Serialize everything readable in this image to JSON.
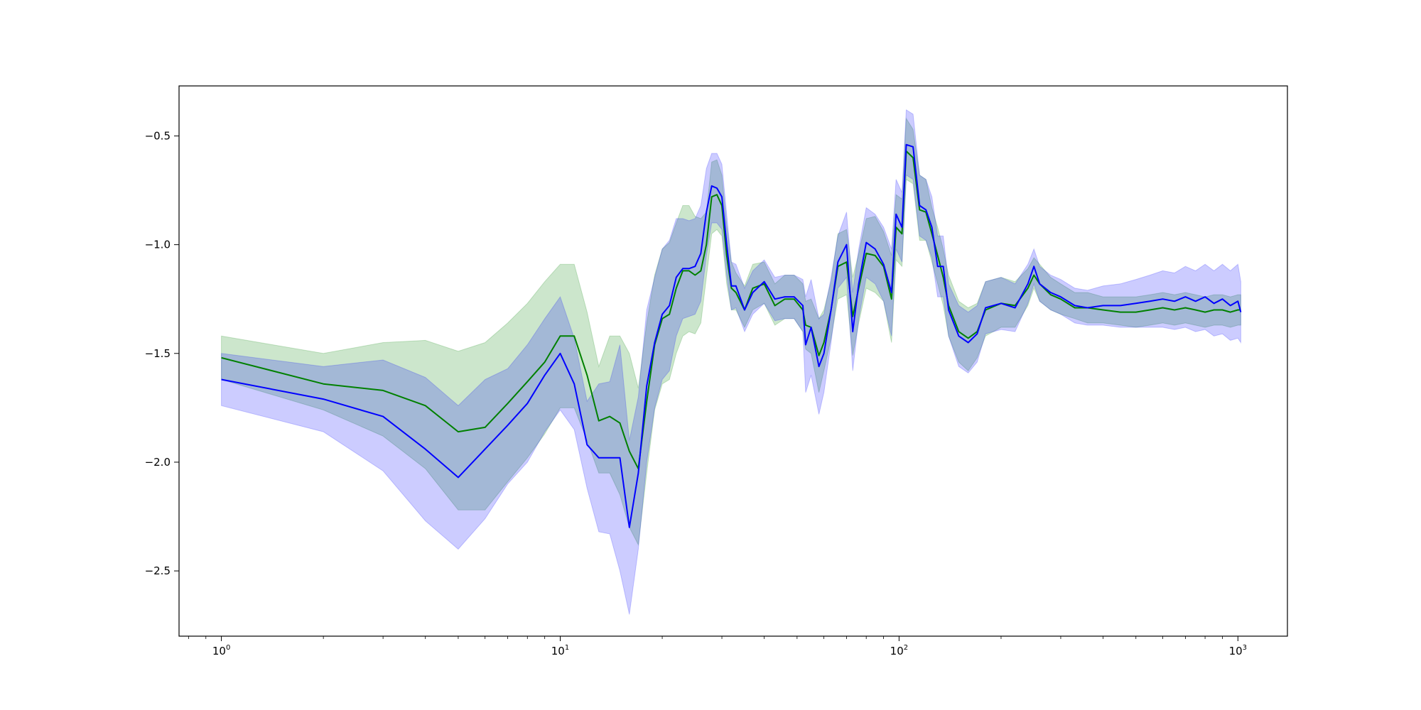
{
  "chart_data": {
    "type": "line",
    "title": "",
    "xlabel": "",
    "ylabel": "",
    "x_scale": "log",
    "xlim": [
      0.75,
      1400
    ],
    "ylim": [
      -2.8,
      -0.27
    ],
    "grid": false,
    "x_ticks": [
      {
        "value": 1,
        "base": "10",
        "exp": "0"
      },
      {
        "value": 10,
        "base": "10",
        "exp": "1"
      },
      {
        "value": 100,
        "base": "10",
        "exp": "2"
      },
      {
        "value": 1000,
        "base": "10",
        "exp": "3"
      }
    ],
    "y_ticks": [
      {
        "value": -0.5,
        "label": "−0.5"
      },
      {
        "value": -1.0,
        "label": "−1.0"
      },
      {
        "value": -1.5,
        "label": "−1.5"
      },
      {
        "value": -2.0,
        "label": "−2.0"
      },
      {
        "value": -2.5,
        "label": "−2.5"
      }
    ],
    "x": [
      1,
      2,
      3,
      4,
      5,
      6,
      7,
      8,
      9,
      10,
      11,
      12,
      13,
      14,
      15,
      16,
      17,
      18,
      19,
      20,
      21,
      22,
      23,
      24,
      25,
      26,
      27,
      28,
      29,
      30,
      31,
      32,
      33,
      35,
      37,
      40,
      43,
      46,
      49,
      52,
      53,
      55,
      58,
      60,
      63,
      66,
      70,
      73,
      76,
      80,
      85,
      90,
      95,
      98,
      102,
      105,
      110,
      115,
      120,
      125,
      130,
      135,
      140,
      150,
      160,
      170,
      180,
      200,
      220,
      240,
      250,
      260,
      280,
      300,
      330,
      360,
      400,
      450,
      500,
      550,
      600,
      650,
      700,
      750,
      800,
      850,
      900,
      950,
      1000,
      1020
    ],
    "series": [
      {
        "color": "#008000",
        "band_color": "#008000",
        "values": [
          -1.52,
          -1.64,
          -1.67,
          -1.74,
          -1.86,
          -1.84,
          -1.73,
          -1.63,
          -1.54,
          -1.42,
          -1.42,
          -1.6,
          -1.81,
          -1.79,
          -1.82,
          -1.95,
          -2.03,
          -1.72,
          -1.46,
          -1.34,
          -1.32,
          -1.2,
          -1.12,
          -1.12,
          -1.14,
          -1.12,
          -1.0,
          -0.78,
          -0.77,
          -0.82,
          -1.05,
          -1.2,
          -1.22,
          -1.3,
          -1.2,
          -1.18,
          -1.28,
          -1.25,
          -1.25,
          -1.3,
          -1.37,
          -1.38,
          -1.51,
          -1.45,
          -1.3,
          -1.1,
          -1.08,
          -1.33,
          -1.2,
          -1.04,
          -1.05,
          -1.1,
          -1.25,
          -0.92,
          -0.95,
          -0.57,
          -0.6,
          -0.84,
          -0.85,
          -0.95,
          -1.05,
          -1.15,
          -1.28,
          -1.4,
          -1.43,
          -1.4,
          -1.3,
          -1.27,
          -1.28,
          -1.2,
          -1.14,
          -1.18,
          -1.23,
          -1.25,
          -1.29,
          -1.29,
          -1.3,
          -1.31,
          -1.31,
          -1.3,
          -1.29,
          -1.3,
          -1.29,
          -1.3,
          -1.31,
          -1.3,
          -1.3,
          -1.31,
          -1.3,
          -1.3
        ],
        "lower": [
          -1.62,
          -1.76,
          -1.88,
          -2.03,
          -2.22,
          -2.22,
          -2.09,
          -1.98,
          -1.87,
          -1.75,
          -1.75,
          -1.9,
          -2.05,
          -2.05,
          -2.15,
          -2.3,
          -2.38,
          -2.05,
          -1.76,
          -1.64,
          -1.62,
          -1.5,
          -1.42,
          -1.4,
          -1.41,
          -1.36,
          -1.15,
          -0.95,
          -0.93,
          -0.96,
          -1.18,
          -1.3,
          -1.3,
          -1.38,
          -1.3,
          -1.27,
          -1.37,
          -1.34,
          -1.34,
          -1.4,
          -1.48,
          -1.5,
          -1.68,
          -1.58,
          -1.43,
          -1.25,
          -1.23,
          -1.51,
          -1.36,
          -1.2,
          -1.22,
          -1.26,
          -1.45,
          -1.07,
          -1.1,
          -0.7,
          -0.72,
          -0.98,
          -0.98,
          -1.08,
          -1.18,
          -1.28,
          -1.42,
          -1.54,
          -1.58,
          -1.52,
          -1.42,
          -1.38,
          -1.38,
          -1.28,
          -1.2,
          -1.26,
          -1.3,
          -1.32,
          -1.34,
          -1.36,
          -1.36,
          -1.37,
          -1.38,
          -1.37,
          -1.36,
          -1.37,
          -1.36,
          -1.37,
          -1.38,
          -1.37,
          -1.37,
          -1.38,
          -1.37,
          -1.37
        ],
        "upper": [
          -1.42,
          -1.5,
          -1.45,
          -1.44,
          -1.49,
          -1.45,
          -1.36,
          -1.27,
          -1.17,
          -1.09,
          -1.09,
          -1.31,
          -1.56,
          -1.42,
          -1.42,
          -1.5,
          -1.66,
          -1.36,
          -1.14,
          -1.02,
          -0.99,
          -0.9,
          -0.82,
          -0.82,
          -0.87,
          -0.88,
          -0.85,
          -0.62,
          -0.61,
          -0.68,
          -0.91,
          -1.08,
          -1.13,
          -1.19,
          -1.09,
          -1.08,
          -1.18,
          -1.14,
          -1.14,
          -1.18,
          -1.26,
          -1.25,
          -1.34,
          -1.3,
          -1.17,
          -0.95,
          -0.93,
          -1.15,
          -1.04,
          -0.88,
          -0.87,
          -0.94,
          -1.05,
          -0.77,
          -0.79,
          -0.42,
          -0.47,
          -0.68,
          -0.7,
          -0.83,
          -0.92,
          -1.02,
          -1.14,
          -1.26,
          -1.29,
          -1.27,
          -1.17,
          -1.15,
          -1.17,
          -1.11,
          -1.06,
          -1.09,
          -1.15,
          -1.18,
          -1.22,
          -1.22,
          -1.24,
          -1.24,
          -1.24,
          -1.23,
          -1.22,
          -1.23,
          -1.22,
          -1.23,
          -1.24,
          -1.23,
          -1.23,
          -1.24,
          -1.23,
          -1.23
        ]
      },
      {
        "color": "#0000ff",
        "band_color": "#0000ff",
        "values": [
          -1.62,
          -1.71,
          -1.79,
          -1.94,
          -2.07,
          -1.94,
          -1.83,
          -1.73,
          -1.6,
          -1.5,
          -1.64,
          -1.92,
          -1.98,
          -1.98,
          -1.98,
          -2.3,
          -2.05,
          -1.65,
          -1.45,
          -1.32,
          -1.28,
          -1.15,
          -1.11,
          -1.11,
          -1.1,
          -1.04,
          -0.85,
          -0.73,
          -0.74,
          -0.78,
          -1.0,
          -1.19,
          -1.19,
          -1.3,
          -1.22,
          -1.17,
          -1.25,
          -1.24,
          -1.24,
          -1.28,
          -1.46,
          -1.38,
          -1.56,
          -1.5,
          -1.3,
          -1.08,
          -1.0,
          -1.4,
          -1.18,
          -0.99,
          -1.02,
          -1.09,
          -1.22,
          -0.86,
          -0.92,
          -0.54,
          -0.55,
          -0.82,
          -0.84,
          -0.92,
          -1.1,
          -1.1,
          -1.3,
          -1.42,
          -1.45,
          -1.41,
          -1.29,
          -1.27,
          -1.29,
          -1.18,
          -1.1,
          -1.18,
          -1.22,
          -1.24,
          -1.28,
          -1.29,
          -1.28,
          -1.28,
          -1.27,
          -1.26,
          -1.25,
          -1.26,
          -1.24,
          -1.26,
          -1.24,
          -1.27,
          -1.25,
          -1.28,
          -1.26,
          -1.31
        ],
        "lower": [
          -1.74,
          -1.86,
          -2.04,
          -2.27,
          -2.4,
          -2.26,
          -2.1,
          -2.0,
          -1.86,
          -1.76,
          -1.85,
          -2.12,
          -2.32,
          -2.33,
          -2.5,
          -2.7,
          -2.4,
          -2.0,
          -1.75,
          -1.62,
          -1.58,
          -1.42,
          -1.34,
          -1.33,
          -1.32,
          -1.26,
          -1.05,
          -0.9,
          -0.9,
          -0.93,
          -1.14,
          -1.3,
          -1.29,
          -1.4,
          -1.32,
          -1.27,
          -1.35,
          -1.34,
          -1.34,
          -1.4,
          -1.68,
          -1.6,
          -1.78,
          -1.68,
          -1.45,
          -1.2,
          -1.15,
          -1.58,
          -1.34,
          -1.15,
          -1.18,
          -1.26,
          -1.42,
          -1.02,
          -1.08,
          -0.68,
          -0.7,
          -0.96,
          -0.98,
          -1.06,
          -1.24,
          -1.24,
          -1.42,
          -1.56,
          -1.59,
          -1.54,
          -1.41,
          -1.39,
          -1.4,
          -1.27,
          -1.18,
          -1.26,
          -1.3,
          -1.32,
          -1.36,
          -1.37,
          -1.37,
          -1.38,
          -1.38,
          -1.38,
          -1.38,
          -1.39,
          -1.38,
          -1.4,
          -1.39,
          -1.42,
          -1.41,
          -1.44,
          -1.43,
          -1.45
        ],
        "upper": [
          -1.5,
          -1.56,
          -1.53,
          -1.61,
          -1.74,
          -1.62,
          -1.57,
          -1.46,
          -1.34,
          -1.24,
          -1.43,
          -1.72,
          -1.64,
          -1.63,
          -1.46,
          -1.9,
          -1.7,
          -1.3,
          -1.15,
          -1.02,
          -0.98,
          -0.88,
          -0.88,
          -0.89,
          -0.88,
          -0.82,
          -0.65,
          -0.58,
          -0.58,
          -0.63,
          -0.86,
          -1.08,
          -1.09,
          -1.2,
          -1.12,
          -1.07,
          -1.15,
          -1.14,
          -1.14,
          -1.16,
          -1.24,
          -1.16,
          -1.34,
          -1.32,
          -1.15,
          -0.96,
          -0.85,
          -1.22,
          -1.02,
          -0.83,
          -0.86,
          -0.92,
          -1.02,
          -0.7,
          -0.76,
          -0.38,
          -0.4,
          -0.68,
          -0.7,
          -0.78,
          -0.96,
          -0.96,
          -1.18,
          -1.28,
          -1.31,
          -1.28,
          -1.17,
          -1.15,
          -1.18,
          -1.09,
          -1.02,
          -1.1,
          -1.14,
          -1.16,
          -1.2,
          -1.21,
          -1.19,
          -1.18,
          -1.16,
          -1.14,
          -1.12,
          -1.13,
          -1.1,
          -1.12,
          -1.09,
          -1.12,
          -1.09,
          -1.12,
          -1.09,
          -1.17
        ]
      }
    ]
  }
}
